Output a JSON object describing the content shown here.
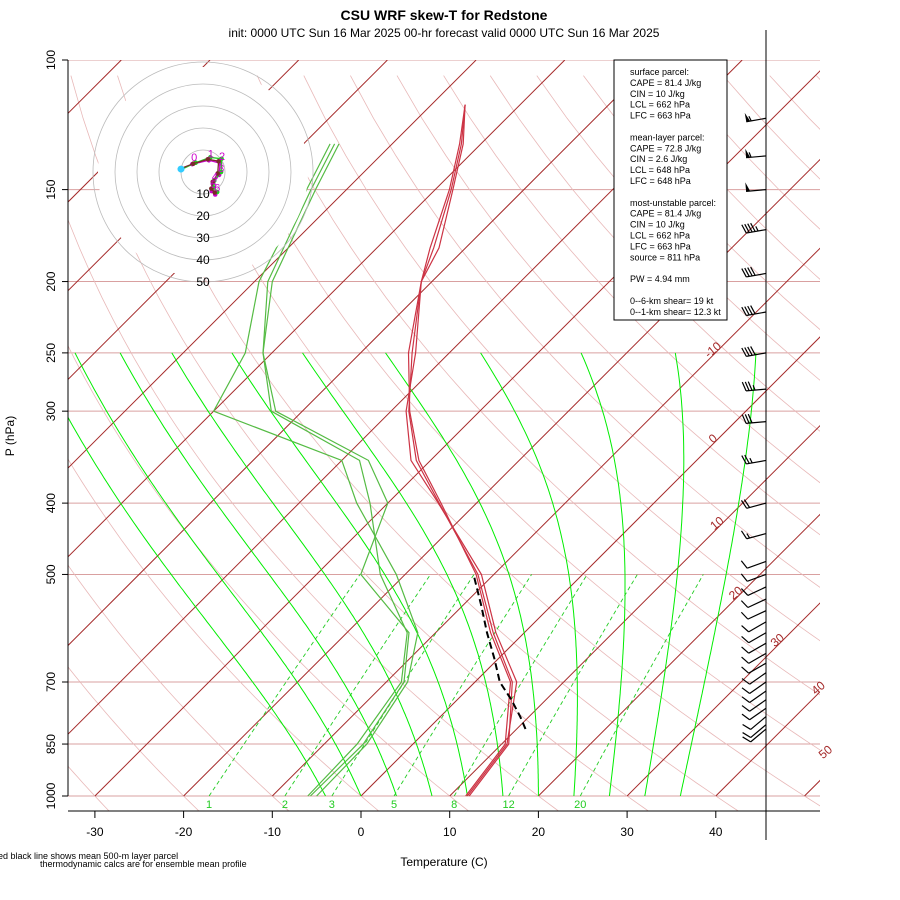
{
  "chart_data": {
    "type": "skew-t",
    "title": "CSU WRF skew-T for Redstone",
    "subtitle": "init: 0000 UTC Sun 16 Mar 2025     00-hr forecast valid 0000 UTC Sun 16 Mar 2025",
    "xlabel": "Temperature (C)",
    "ylabel": "P (hPa)",
    "xlim": [
      -33,
      45
    ],
    "ylim": [
      1000,
      100
    ],
    "x_ticks": [
      -30,
      -20,
      -10,
      0,
      10,
      20,
      30,
      40
    ],
    "y_ticks": [
      100,
      150,
      200,
      250,
      300,
      400,
      500,
      700,
      850,
      1000
    ],
    "isotherm_labels": [
      -10,
      0,
      10,
      20,
      30,
      40,
      50
    ],
    "mixing_ratio_labels": [
      "1",
      "2",
      "3",
      "5",
      "8",
      "12",
      "20"
    ],
    "hodograph_ring_labels": [
      "10",
      "20",
      "30",
      "40",
      "50"
    ],
    "hodograph_height_labels": [
      "6",
      "5",
      "4",
      "3",
      "2",
      "1",
      "0"
    ],
    "temperature_members": [
      [
        [
          1000,
          12.2
        ],
        [
          850,
          10.8
        ],
        [
          700,
          4.2
        ],
        [
          600,
          -3.5
        ],
        [
          500,
          -11.8
        ],
        [
          400,
          -24.2
        ],
        [
          350,
          -31.6
        ],
        [
          300,
          -38.0
        ],
        [
          250,
          -44.2
        ],
        [
          200,
          -51.2
        ],
        [
          180,
          -53.6
        ],
        [
          150,
          -58.2
        ],
        [
          130,
          -62.2
        ],
        [
          115,
          -66.2
        ]
      ],
      [
        [
          1000,
          12.0
        ],
        [
          850,
          10.6
        ],
        [
          700,
          4.7
        ],
        [
          600,
          -3.2
        ],
        [
          500,
          -11.4
        ],
        [
          400,
          -24.3
        ],
        [
          350,
          -32.2
        ],
        [
          300,
          -38.3
        ],
        [
          250,
          -43.8
        ],
        [
          200,
          -51.2
        ],
        [
          180,
          -53.0
        ],
        [
          150,
          -58.0
        ],
        [
          130,
          -62.0
        ],
        [
          115,
          -66.2
        ]
      ],
      [
        [
          1000,
          11.8
        ],
        [
          850,
          10.4
        ],
        [
          700,
          4.0
        ],
        [
          600,
          -3.8
        ],
        [
          500,
          -12.0
        ],
        [
          400,
          -24.0
        ],
        [
          350,
          -31.3
        ],
        [
          300,
          -37.9
        ],
        [
          250,
          -44.6
        ],
        [
          200,
          -51.2
        ],
        [
          180,
          -54.0
        ],
        [
          150,
          -58.4
        ],
        [
          130,
          -62.4
        ],
        [
          115,
          -66.2
        ]
      ]
    ],
    "dewpoint_members": [
      [
        [
          1000,
          -6.0
        ],
        [
          850,
          -6.3
        ],
        [
          700,
          -8.3
        ],
        [
          600,
          -13.2
        ],
        [
          500,
          -22.8
        ],
        [
          400,
          -32.0
        ],
        [
          350,
          -38.0
        ],
        [
          300,
          -53.5
        ],
        [
          250,
          -61.0
        ],
        [
          200,
          -68.0
        ],
        [
          150,
          -73.5
        ],
        [
          130,
          -76.0
        ]
      ],
      [
        [
          1000,
          -5.7
        ],
        [
          850,
          -5.6
        ],
        [
          700,
          -8.0
        ],
        [
          600,
          -13.0
        ],
        [
          500,
          -25.0
        ],
        [
          400,
          -30.0
        ],
        [
          350,
          -37.0
        ],
        [
          300,
          -53.0
        ],
        [
          250,
          -61.0
        ],
        [
          200,
          -68.5
        ],
        [
          150,
          -74.0
        ],
        [
          130,
          -76.5
        ]
      ],
      [
        [
          1000,
          -5.0
        ],
        [
          850,
          -5.2
        ],
        [
          700,
          -7.6
        ],
        [
          600,
          -12.0
        ],
        [
          500,
          -21.0
        ],
        [
          400,
          -33.5
        ],
        [
          350,
          -40.0
        ],
        [
          300,
          -60.0
        ],
        [
          250,
          -63.0
        ],
        [
          200,
          -69.5
        ],
        [
          150,
          -74.5
        ],
        [
          130,
          -77.0
        ]
      ]
    ],
    "mean_parcel": [
      [
        811,
        11.0
      ],
      [
        780,
        9.0
      ],
      [
        740,
        6.1
      ],
      [
        700,
        2.8
      ],
      [
        650,
        -0.5
      ],
      [
        600,
        -4.2
      ],
      [
        550,
        -8.0
      ],
      [
        500,
        -12.3
      ]
    ],
    "wind_pressure_levels": [
      120,
      135,
      150,
      170,
      195,
      220,
      250,
      280,
      310,
      350,
      400,
      440,
      480,
      500,
      520,
      540,
      560,
      580,
      600,
      620,
      640,
      660,
      680,
      700,
      720,
      740,
      760,
      780,
      800,
      811
    ],
    "wind_speeds_kt": [
      55,
      55,
      50,
      45,
      40,
      40,
      40,
      35,
      30,
      25,
      20,
      15,
      12,
      10,
      10,
      10,
      10,
      10,
      10,
      10,
      10,
      10,
      10,
      10,
      10,
      10,
      10,
      10,
      10,
      10
    ],
    "wind_directions_deg": [
      260,
      265,
      265,
      260,
      260,
      260,
      260,
      265,
      265,
      260,
      255,
      255,
      250,
      250,
      245,
      245,
      245,
      240,
      240,
      240,
      240,
      240,
      235,
      235,
      235,
      235,
      235,
      230,
      230,
      230
    ],
    "hodograph_members": [
      {
        "color": "#cc00cc",
        "points": [
          [
            -4.5,
            -0.6
          ],
          [
            -2.2,
            -1.6
          ],
          [
            1.2,
            -2.4
          ],
          [
            3.5,
            -1.8
          ],
          [
            3.3,
            0.6
          ],
          [
            2.0,
            2.4
          ],
          [
            1.8,
            3.9
          ],
          [
            2.5,
            4.6
          ]
        ]
      },
      {
        "color": "#22cc22",
        "points": [
          [
            -4.5,
            -0.5
          ],
          [
            -1.5,
            -1.9
          ],
          [
            1.5,
            -3.0
          ],
          [
            3.8,
            -2.7
          ],
          [
            3.7,
            0.0
          ],
          [
            2.3,
            1.8
          ],
          [
            2.2,
            3.2
          ],
          [
            2.9,
            4.1
          ]
        ]
      },
      {
        "color": "#7a2a2a",
        "points": [
          [
            -4.6,
            -0.7
          ],
          [
            -2.0,
            -1.7
          ],
          [
            1.0,
            -2.6
          ],
          [
            3.2,
            -2.2
          ],
          [
            3.0,
            0.3
          ],
          [
            2.0,
            2.0
          ],
          [
            1.7,
            3.4
          ],
          [
            2.4,
            4.2
          ]
        ]
      }
    ],
    "info_box_lines": [
      "surface parcel:",
      "CAPE = 81.4 J/kg",
      "CIN = 10 J/kg",
      "LCL = 662 hPa",
      "LFC = 663 hPa",
      "",
      "mean-layer parcel:",
      "CAPE = 72.8 J/kg",
      "CIN = 2.6 J/kg",
      "LCL = 648 hPa",
      "LFC = 648 hPa",
      "",
      "most-unstable parcel:",
      "CAPE = 81.4 J/kg",
      "CIN = 10 J/kg",
      "LCL = 662 hPa",
      "LFC = 663 hPa",
      "source = 811 hPa",
      "",
      "PW =  4.94 mm",
      "",
      "0--6-km shear= 19 kt",
      "0--1-km shear= 12.3 kt"
    ],
    "footnote_1": "ed black line shows mean 500-m layer parcel",
    "footnote_2": "thermodynamic calcs are for ensemble mean profile",
    "colors": {
      "isotherm": "#a52a2a",
      "isobar": "#d9a0a0",
      "dry_adiabat": "#e8b8b8",
      "moist_adiabat": "#00ee00",
      "mixing_ratio": "#22cc22",
      "temperature": "#cc3344",
      "dewpoint": "#55bb44",
      "parcel": "#000000"
    }
  }
}
